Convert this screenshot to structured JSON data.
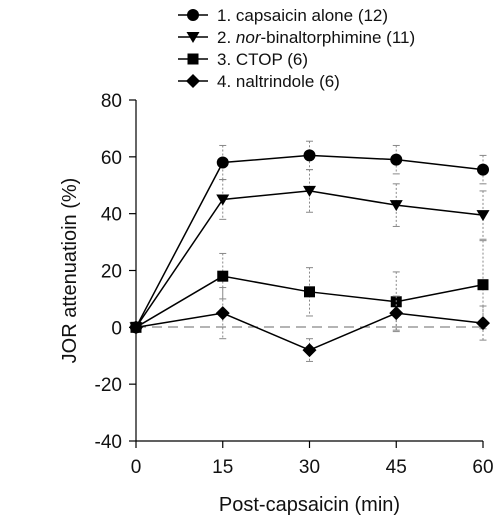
{
  "chart_data": {
    "type": "line",
    "xlabel": "Post-capsaicin (min)",
    "ylabel": "JOR attenuatioin (%)",
    "xlim": [
      0,
      60
    ],
    "ylim": [
      -40,
      80
    ],
    "xticks": [
      0,
      15,
      30,
      45,
      60
    ],
    "yticks": [
      -40,
      -20,
      0,
      20,
      40,
      60,
      80
    ],
    "grid": false,
    "legend_position": "top",
    "reference_line": {
      "y": 0,
      "style": "dashed"
    },
    "x": [
      0,
      15,
      30,
      45,
      60
    ],
    "series": [
      {
        "name": "1. capsaicin alone (12)",
        "marker": "circle",
        "values": [
          0,
          58,
          60.5,
          59,
          55.5
        ],
        "error": [
          0,
          6,
          5,
          5,
          5
        ]
      },
      {
        "name_prefix": "2. ",
        "name_italic": "nor",
        "name_suffix": "-binaltorphimine (11)",
        "marker": "triangle-down",
        "values": [
          0,
          45,
          48,
          43,
          39.5
        ],
        "error": [
          0,
          7,
          7.5,
          7.5,
          8.5
        ]
      },
      {
        "name": "3. CTOP (6)",
        "marker": "square",
        "values": [
          0,
          18,
          12.5,
          9,
          15
        ],
        "error": [
          0,
          8,
          8.5,
          10.5,
          15.5
        ]
      },
      {
        "name": "4. naltrindole (6)",
        "marker": "diamond",
        "values": [
          0,
          5,
          -8,
          5,
          1.5
        ],
        "error": [
          0,
          9,
          4,
          6,
          6
        ]
      }
    ]
  }
}
